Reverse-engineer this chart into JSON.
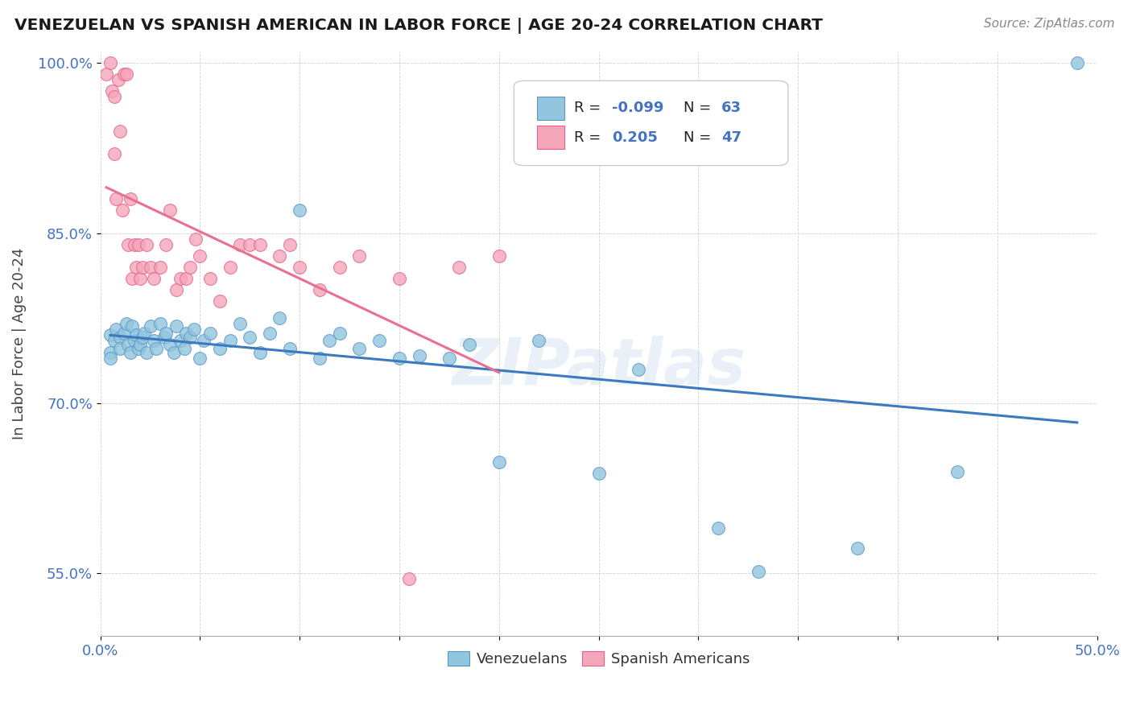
{
  "title": "VENEZUELAN VS SPANISH AMERICAN IN LABOR FORCE | AGE 20-24 CORRELATION CHART",
  "source": "Source: ZipAtlas.com",
  "ylabel": "In Labor Force | Age 20-24",
  "xlim": [
    0.0,
    0.5
  ],
  "ylim": [
    0.495,
    1.01
  ],
  "xticks": [
    0.0,
    0.05,
    0.1,
    0.15,
    0.2,
    0.25,
    0.3,
    0.35,
    0.4,
    0.45,
    0.5
  ],
  "yticks": [
    0.55,
    0.7,
    0.85,
    1.0
  ],
  "ytick_labels": [
    "55.0%",
    "70.0%",
    "85.0%",
    "100.0%"
  ],
  "xtick_labels": [
    "0.0%",
    "",
    "",
    "",
    "",
    "",
    "",
    "",
    "",
    "",
    "50.0%"
  ],
  "legend_r_blue": "-0.099",
  "legend_n_blue": "63",
  "legend_r_pink": "0.205",
  "legend_n_pink": "47",
  "blue_color": "#92c5de",
  "pink_color": "#f4a6b8",
  "blue_edge": "#5897c8",
  "pink_edge": "#e86090",
  "watermark": "ZIPatlas",
  "blue_dots_x": [
    0.005,
    0.005,
    0.005,
    0.007,
    0.008,
    0.01,
    0.01,
    0.012,
    0.013,
    0.014,
    0.015,
    0.016,
    0.017,
    0.018,
    0.019,
    0.02,
    0.021,
    0.022,
    0.023,
    0.025,
    0.027,
    0.028,
    0.03,
    0.032,
    0.033,
    0.035,
    0.037,
    0.038,
    0.04,
    0.042,
    0.043,
    0.045,
    0.047,
    0.05,
    0.052,
    0.055,
    0.06,
    0.065,
    0.07,
    0.075,
    0.08,
    0.085,
    0.09,
    0.095,
    0.1,
    0.11,
    0.115,
    0.12,
    0.13,
    0.14,
    0.15,
    0.16,
    0.175,
    0.185,
    0.2,
    0.22,
    0.25,
    0.27,
    0.31,
    0.33,
    0.38,
    0.43,
    0.49
  ],
  "blue_dots_y": [
    0.76,
    0.745,
    0.74,
    0.755,
    0.765,
    0.758,
    0.748,
    0.762,
    0.77,
    0.752,
    0.745,
    0.768,
    0.755,
    0.76,
    0.748,
    0.752,
    0.758,
    0.762,
    0.745,
    0.768,
    0.755,
    0.748,
    0.77,
    0.758,
    0.762,
    0.752,
    0.745,
    0.768,
    0.755,
    0.748,
    0.762,
    0.758,
    0.765,
    0.74,
    0.755,
    0.762,
    0.748,
    0.755,
    0.77,
    0.758,
    0.745,
    0.762,
    0.775,
    0.748,
    0.87,
    0.74,
    0.755,
    0.762,
    0.748,
    0.755,
    0.74,
    0.742,
    0.74,
    0.752,
    0.648,
    0.755,
    0.638,
    0.73,
    0.59,
    0.552,
    0.572,
    0.64,
    1.0
  ],
  "pink_dots_x": [
    0.003,
    0.005,
    0.006,
    0.007,
    0.007,
    0.008,
    0.009,
    0.01,
    0.011,
    0.012,
    0.013,
    0.014,
    0.015,
    0.016,
    0.017,
    0.018,
    0.019,
    0.02,
    0.021,
    0.023,
    0.025,
    0.027,
    0.03,
    0.033,
    0.035,
    0.038,
    0.04,
    0.043,
    0.045,
    0.048,
    0.05,
    0.055,
    0.06,
    0.065,
    0.07,
    0.075,
    0.08,
    0.09,
    0.095,
    0.1,
    0.11,
    0.12,
    0.13,
    0.15,
    0.155,
    0.18,
    0.2
  ],
  "pink_dots_y": [
    0.99,
    1.0,
    0.975,
    0.97,
    0.92,
    0.88,
    0.985,
    0.94,
    0.87,
    0.99,
    0.99,
    0.84,
    0.88,
    0.81,
    0.84,
    0.82,
    0.84,
    0.81,
    0.82,
    0.84,
    0.82,
    0.81,
    0.82,
    0.84,
    0.87,
    0.8,
    0.81,
    0.81,
    0.82,
    0.845,
    0.83,
    0.81,
    0.79,
    0.82,
    0.84,
    0.84,
    0.84,
    0.83,
    0.84,
    0.82,
    0.8,
    0.82,
    0.83,
    0.81,
    0.545,
    0.82,
    0.83
  ]
}
